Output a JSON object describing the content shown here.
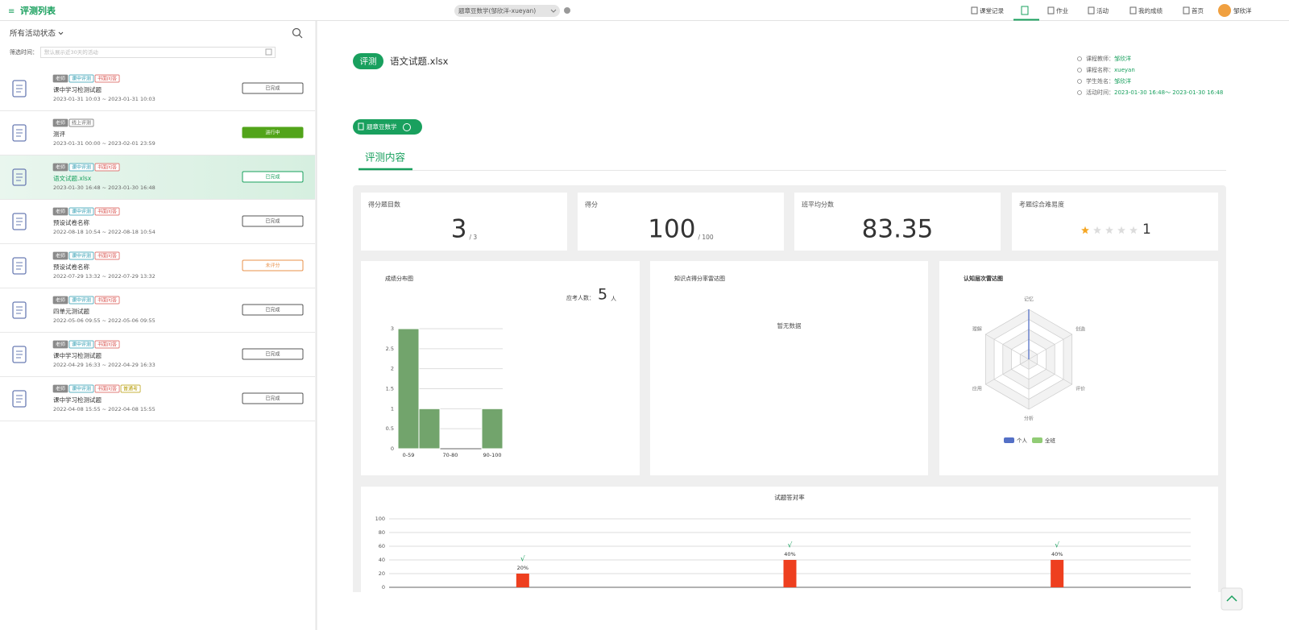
{
  "header": {
    "title": "评测列表",
    "course_select": "题章豆数学(邹欣洋-xueyan)",
    "nav": [
      "课堂记录",
      "作业",
      "活动",
      "我的成绩",
      "首页"
    ],
    "user": "邹欣洋"
  },
  "sidebar": {
    "status_filter": "所有活动状态",
    "time_label": "筛选时间：",
    "time_placeholder": "默认展示近30天的活动",
    "items": [
      {
        "tags": [
          {
            "text": "老师",
            "color": "#8a8a8a"
          },
          {
            "text": "课中评测",
            "color": "#2a9ab0"
          },
          {
            "text": "书面问答",
            "color": "#d9534f"
          }
        ],
        "title": "课中学习检测试题",
        "time": "2023-01-31 10:03 ~ 2023-01-31 10:03",
        "status": {
          "text": "已完成",
          "color": "#555555"
        }
      },
      {
        "tags": [
          {
            "text": "老师",
            "color": "#8a8a8a"
          },
          {
            "text": "线上评测",
            "color": "#666666"
          }
        ],
        "title": "测评",
        "time": "2023-01-31 00:00 ~ 2023-02-01 23:59",
        "status": {
          "text": "进行中",
          "color": "#52a41a",
          "filled": true
        }
      },
      {
        "tags": [
          {
            "text": "老师",
            "color": "#8a8a8a"
          },
          {
            "text": "课中评测",
            "color": "#2a9ab0"
          },
          {
            "text": "书面问答",
            "color": "#d9534f"
          }
        ],
        "title": "语文试题.xlsx",
        "time": "2023-01-30 16:48 ~ 2023-01-30 16:48",
        "status": {
          "text": "已完成",
          "color": "#19a05e"
        },
        "selected": true
      },
      {
        "tags": [
          {
            "text": "老师",
            "color": "#8a8a8a"
          },
          {
            "text": "课中评测",
            "color": "#2a9ab0"
          },
          {
            "text": "书面问答",
            "color": "#d9534f"
          }
        ],
        "title": "预设试卷名称",
        "time": "2022-08-18 10:54 ~ 2022-08-18 10:54",
        "status": {
          "text": "已完成",
          "color": "#555555"
        }
      },
      {
        "tags": [
          {
            "text": "老师",
            "color": "#8a8a8a"
          },
          {
            "text": "课中评测",
            "color": "#2a9ab0"
          },
          {
            "text": "书面问答",
            "color": "#d9534f"
          }
        ],
        "title": "预设试卷名称",
        "time": "2022-07-29 13:32 ~ 2022-07-29 13:32",
        "status": {
          "text": "未评分",
          "color": "#e8904a"
        }
      },
      {
        "tags": [
          {
            "text": "老师",
            "color": "#8a8a8a"
          },
          {
            "text": "课中评测",
            "color": "#2a9ab0"
          },
          {
            "text": "书面问答",
            "color": "#d9534f"
          }
        ],
        "title": "四单元测试题",
        "time": "2022-05-06 09:55 ~ 2022-05-06 09:55",
        "status": {
          "text": "已完成",
          "color": "#555555"
        }
      },
      {
        "tags": [
          {
            "text": "老师",
            "color": "#8a8a8a"
          },
          {
            "text": "课中评测",
            "color": "#2a9ab0"
          },
          {
            "text": "书面问答",
            "color": "#d9534f"
          }
        ],
        "title": "课中学习检测试题",
        "time": "2022-04-29 16:33 ~ 2022-04-29 16:33",
        "status": {
          "text": "已完成",
          "color": "#555555"
        }
      },
      {
        "tags": [
          {
            "text": "老师",
            "color": "#8a8a8a"
          },
          {
            "text": "课中评测",
            "color": "#2a9ab0"
          },
          {
            "text": "书面问答",
            "color": "#d9534f"
          },
          {
            "text": "普通考",
            "color": "#b59a00"
          }
        ],
        "title": "课中学习检测试题",
        "time": "2022-04-08 15:55 ~ 2022-04-08 15:55",
        "status": {
          "text": "已完成",
          "color": "#555555"
        }
      }
    ]
  },
  "detail": {
    "badge": "评测",
    "title": "语文试题.xlsx",
    "info": [
      {
        "label": "课程教师：",
        "value": "邹欣洋"
      },
      {
        "label": "课程名称：",
        "value": "xueyan"
      },
      {
        "label": "学生姓名：",
        "value": "邹欣洋"
      },
      {
        "label": "活动时间：",
        "value": "2023-01-30 16:48～ 2023-01-30 16:48"
      }
    ],
    "subject": "题章豆数学",
    "tab": "评测内容",
    "stats": [
      {
        "label": "得分题目数",
        "value": 3,
        "suffix": "/ 3"
      },
      {
        "label": "得分",
        "value": 100,
        "suffix": "/ 100"
      },
      {
        "label": "班平均分数",
        "value": 83.35
      },
      {
        "label": "考题综合难易度",
        "value": 1,
        "stars": 5
      }
    ]
  },
  "chart_data": [
    {
      "type": "bar",
      "title": "成绩分布图",
      "note_label": "应考人数：",
      "note_value": 5,
      "note_unit": "人",
      "categories": [
        "0-59",
        null,
        "70-80",
        null,
        "90-100"
      ],
      "values": [
        3,
        1,
        0,
        0,
        1
      ],
      "color": "#72a46c",
      "ylim": [
        0,
        3
      ],
      "yticks": [
        0,
        0.5,
        1,
        1.5,
        2,
        2.5,
        3
      ],
      "grid": true
    },
    {
      "type": "radar",
      "title": "知识点得分率雷达图",
      "empty_text": "暂无数据"
    },
    {
      "type": "radar",
      "title": "认知层次雷达图",
      "indicators": [
        "记忆",
        "创造",
        "评价",
        "分析",
        "应用",
        "理解"
      ],
      "rlim": [
        0,
        100
      ],
      "series": [
        {
          "name": "个人",
          "color": "#5470c6",
          "values": [
            100,
            0,
            0,
            0,
            0,
            0
          ]
        },
        {
          "name": "全班",
          "color": "#91cc75",
          "values": [
            0,
            0,
            0,
            0,
            0,
            0
          ]
        }
      ]
    },
    {
      "type": "bar",
      "title": "试题答对率",
      "categories": [
        null,
        null,
        null
      ],
      "values": [
        20,
        40,
        40
      ],
      "value_labels": [
        "20%",
        "40%",
        "40%"
      ],
      "annotations": [
        "√",
        "√",
        "√"
      ],
      "color": "#ee3f1f",
      "ylim": [
        0,
        100
      ],
      "yticks": [
        0,
        20,
        40,
        60,
        80,
        100
      ],
      "grid": true
    }
  ]
}
